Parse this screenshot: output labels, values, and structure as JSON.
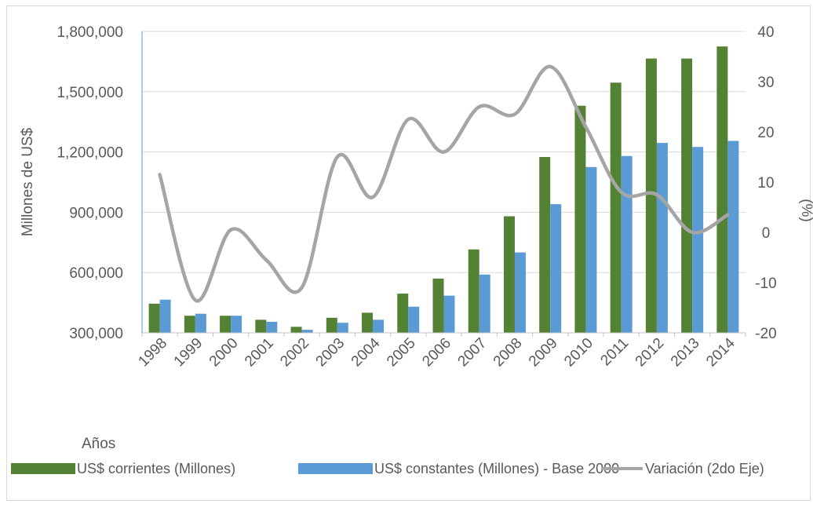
{
  "chart_data": {
    "type": "bar",
    "title": "",
    "xlabel": "Años",
    "ylabel": "Millones de US$",
    "y2label": "(%)",
    "categories": [
      "1998",
      "1999",
      "2000",
      "2001",
      "2002",
      "2003",
      "2004",
      "2005",
      "2006",
      "2007",
      "2008",
      "2009",
      "2010",
      "2011",
      "2012",
      "2013",
      "2014"
    ],
    "ylim": [
      300000,
      1800000
    ],
    "y_ticks": [
      300000,
      600000,
      900000,
      1200000,
      1500000,
      1800000
    ],
    "y_tick_labels": [
      "300,000",
      "600,000",
      "900,000",
      "1,200,000",
      "1,500,000",
      "1,800,000"
    ],
    "y2lim": [
      -20,
      40
    ],
    "y2_ticks": [
      -20,
      -10,
      0,
      10,
      20,
      30,
      40
    ],
    "y2_tick_labels": [
      "-20",
      "-10",
      "0",
      "10",
      "20",
      "30",
      "40"
    ],
    "grid": true,
    "legend_position": "bottom",
    "series": [
      {
        "name": "US$ corrientes (Millones)",
        "kind": "bar",
        "axis": "primary",
        "color": "#548235",
        "values": [
          445000,
          385000,
          385000,
          365000,
          330000,
          375000,
          400000,
          495000,
          570000,
          715000,
          880000,
          1175000,
          1430000,
          1545000,
          1665000,
          1665000,
          1725000
        ]
      },
      {
        "name": "US$ constantes (Millones) - Base 2000",
        "kind": "bar",
        "axis": "primary",
        "color": "#5b9bd5",
        "values": [
          465000,
          395000,
          385000,
          355000,
          315000,
          350000,
          365000,
          430000,
          485000,
          590000,
          700000,
          940000,
          1125000,
          1180000,
          1245000,
          1225000,
          1255000
        ]
      },
      {
        "name": "Variación (2do Eje)",
        "kind": "line",
        "axis": "secondary",
        "color": "#a5a5a5",
        "values": [
          11.5,
          -13.5,
          0.5,
          -5.5,
          -11,
          15,
          7,
          22.5,
          16,
          25,
          23.5,
          33,
          21,
          8,
          7.5,
          0,
          3.5
        ]
      }
    ]
  }
}
